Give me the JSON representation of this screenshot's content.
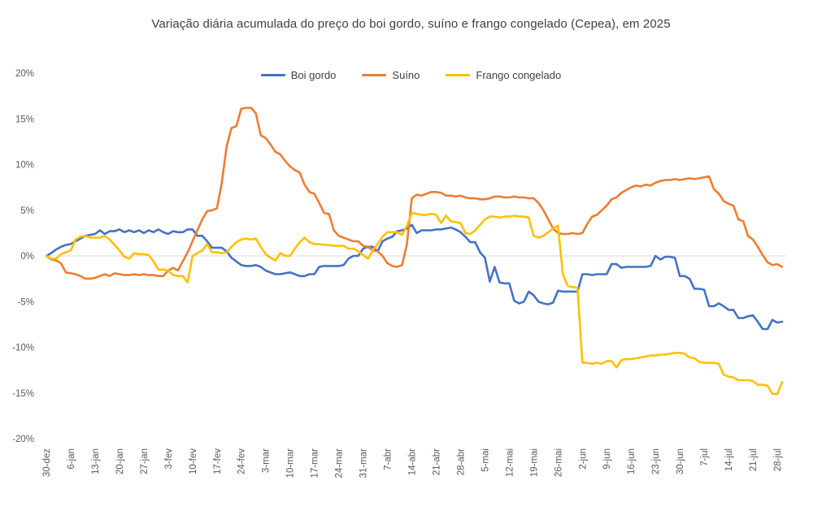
{
  "chart_data": {
    "type": "line",
    "title": "Variação diária acumulada do preço do boi gordo, suíno e frango congelado (Cepea), em 2025",
    "legend_position": "top-center",
    "grid": "zero-line-only",
    "gridline_color": "#D9D9D9",
    "axis_label_color": "#595959",
    "title_color": "#404040",
    "y_unit": "%",
    "ylim": [
      -20,
      20
    ],
    "y_ticks": [
      20,
      15,
      10,
      5,
      0,
      -5,
      -10,
      -15,
      -20
    ],
    "categories": [
      "30-dez",
      "6-jan",
      "13-jan",
      "20-jan",
      "27-jan",
      "3-fev",
      "10-fev",
      "17-fev",
      "24-fev",
      "3-mar",
      "10-mar",
      "17-mar",
      "24-mar",
      "31-mar",
      "7-abr",
      "14-abr",
      "21-abr",
      "28-abr",
      "5-mai",
      "12-mai",
      "19-mai",
      "26-mai",
      "2-jun",
      "9-jun",
      "16-jun",
      "23-jun",
      "30-jun",
      "7-jul",
      "14-jul",
      "21-jul",
      "28-jul"
    ],
    "points_per_week": 5,
    "series": [
      {
        "id": "boi-gordo",
        "name": "Boi gordo",
        "color": "#4472C4",
        "values": [
          0,
          0.3,
          0.7,
          1,
          1.2,
          1.3,
          1.6,
          1.9,
          2.2,
          2.3,
          2.4,
          2.8,
          2.4,
          2.7,
          2.7,
          2.9,
          2.6,
          2.8,
          2.6,
          2.8,
          2.5,
          2.8,
          2.6,
          2.9,
          2.6,
          2.4,
          2.7,
          2.6,
          2.6,
          2.9,
          2.9,
          2.2,
          2.2,
          1.6,
          0.9,
          0.9,
          0.9,
          0.5,
          -0.2,
          -0.6,
          -1,
          -1.1,
          -1.1,
          -1,
          -1.2,
          -1.6,
          -1.8,
          -2,
          -2,
          -1.9,
          -1.8,
          -2,
          -2.2,
          -2.2,
          -2,
          -2,
          -1.2,
          -1.1,
          -1.1,
          -1.1,
          -1.1,
          -1,
          -0.3,
          0,
          0,
          0.8,
          1,
          1,
          0.5,
          1.6,
          1.9,
          2.1,
          2.7,
          2.8,
          3,
          3.4,
          2.5,
          2.8,
          2.8,
          2.8,
          2.9,
          2.9,
          3,
          3.1,
          2.9,
          2.6,
          2.1,
          1.5,
          1.5,
          0.4,
          -0.2,
          -2.8,
          -1.2,
          -2.9,
          -3,
          -3,
          -4.9,
          -5.2,
          -5,
          -3.9,
          -4.3,
          -5,
          -5.2,
          -5.3,
          -5.1,
          -3.8,
          -3.9,
          -3.9,
          -3.9,
          -3.9,
          -2,
          -2,
          -2.1,
          -2,
          -2,
          -2,
          -0.9,
          -0.9,
          -1.3,
          -1.2,
          -1.2,
          -1.2,
          -1.2,
          -1.2,
          -1.1,
          0,
          -0.4,
          -0.1,
          -0.1,
          -0.2,
          -2.2,
          -2.2,
          -2.5,
          -3.6,
          -3.6,
          -3.7,
          -5.5,
          -5.5,
          -5.2,
          -5.5,
          -5.9,
          -5.9,
          -6.8,
          -6.8,
          -6.6,
          -6.5,
          -7.2,
          -8,
          -8,
          -7,
          -7.3,
          -7.2
        ]
      },
      {
        "id": "suino",
        "name": "Suíno",
        "color": "#ED7D31",
        "values": [
          0,
          -0.4,
          -0.5,
          -0.8,
          -1.8,
          -1.9,
          -2,
          -2.2,
          -2.5,
          -2.5,
          -2.4,
          -2.2,
          -2,
          -2.2,
          -1.9,
          -2,
          -2.1,
          -2.1,
          -2,
          -2.1,
          -2,
          -2.1,
          -2.1,
          -2.2,
          -2.2,
          -1.6,
          -1.3,
          -1.6,
          -0.6,
          0.4,
          1.6,
          2.8,
          4,
          4.9,
          5,
          5.2,
          8,
          12,
          14,
          14.2,
          16.1,
          16.2,
          16.2,
          15.6,
          13.2,
          12.9,
          12.2,
          11.4,
          11.1,
          10.4,
          9.8,
          9.4,
          9.1,
          7.8,
          7,
          6.8,
          5.8,
          4.7,
          4.6,
          2.8,
          2.2,
          2,
          1.8,
          1.6,
          1.6,
          1.1,
          1,
          0.6,
          0.5,
          0,
          -0.8,
          -1.1,
          -1.2,
          -1,
          1.3,
          6.3,
          6.7,
          6.6,
          6.8,
          7,
          7,
          6.9,
          6.6,
          6.6,
          6.5,
          6.6,
          6.4,
          6.3,
          6.3,
          6.2,
          6.2,
          6.3,
          6.5,
          6.5,
          6.4,
          6.4,
          6.5,
          6.4,
          6.4,
          6.3,
          6.3,
          5.8,
          5,
          4,
          3,
          2.5,
          2.4,
          2.4,
          2.5,
          2.4,
          2.5,
          3.5,
          4.3,
          4.5,
          5,
          5.5,
          6.2,
          6.4,
          6.9,
          7.2,
          7.5,
          7.7,
          7.6,
          7.8,
          7.7,
          8,
          8.2,
          8.3,
          8.3,
          8.4,
          8.3,
          8.4,
          8.5,
          8.4,
          8.5,
          8.6,
          8.7,
          7.3,
          6.8,
          6,
          5.7,
          5.5,
          4,
          3.8,
          2.2,
          1.8,
          1,
          0.1,
          -0.7,
          -1,
          -0.9,
          -1.2
        ]
      },
      {
        "id": "frango-congelado",
        "name": "Frango congelado",
        "color": "#FFC000",
        "values": [
          0,
          -0.3,
          -0.3,
          0.2,
          0.4,
          0.6,
          1.8,
          2.1,
          2.2,
          2,
          2,
          2,
          2.2,
          1.8,
          1.2,
          0.6,
          -0.1,
          -0.3,
          0.3,
          0.2,
          0.2,
          0.1,
          -0.6,
          -1.5,
          -1.5,
          -1.6,
          -2.1,
          -2.2,
          -2.2,
          -2.9,
          0,
          0.3,
          0.6,
          1.3,
          0.4,
          0.4,
          0.3,
          0.4,
          1,
          1.5,
          1.8,
          1.9,
          1.8,
          1.9,
          1,
          0.2,
          -0.2,
          -0.5,
          0.3,
          0,
          0,
          0.8,
          1.5,
          2,
          1.5,
          1.3,
          1.3,
          1.2,
          1.2,
          1.1,
          1.1,
          1.1,
          0.8,
          0.8,
          0.5,
          0.1,
          -0.3,
          0.6,
          1.3,
          2.1,
          2.6,
          2.6,
          2.6,
          2.3,
          3.3,
          4.7,
          4.6,
          4.5,
          4.5,
          4.6,
          4.5,
          3.6,
          4.4,
          3.8,
          3.7,
          3.6,
          2.5,
          2.4,
          2.8,
          3.4,
          4,
          4.3,
          4.3,
          4.2,
          4.3,
          4.3,
          4.4,
          4.3,
          4.3,
          4.2,
          2.2,
          2,
          2.2,
          2.6,
          3,
          3.3,
          -2,
          -3.3,
          -3.4,
          -3.5,
          -11.7,
          -11.7,
          -11.8,
          -11.7,
          -11.8,
          -11.5,
          -11.5,
          -12.2,
          -11.4,
          -11.3,
          -11.3,
          -11.2,
          -11.1,
          -11,
          -10.9,
          -10.9,
          -10.8,
          -10.8,
          -10.7,
          -10.6,
          -10.6,
          -10.7,
          -11.1,
          -11.2,
          -11.6,
          -11.7,
          -11.7,
          -11.7,
          -11.8,
          -13,
          -13.2,
          -13.3,
          -13.6,
          -13.6,
          -13.6,
          -13.7,
          -14.1,
          -14.1,
          -14.2,
          -15.1,
          -15.1,
          -13.8
        ]
      }
    ]
  }
}
